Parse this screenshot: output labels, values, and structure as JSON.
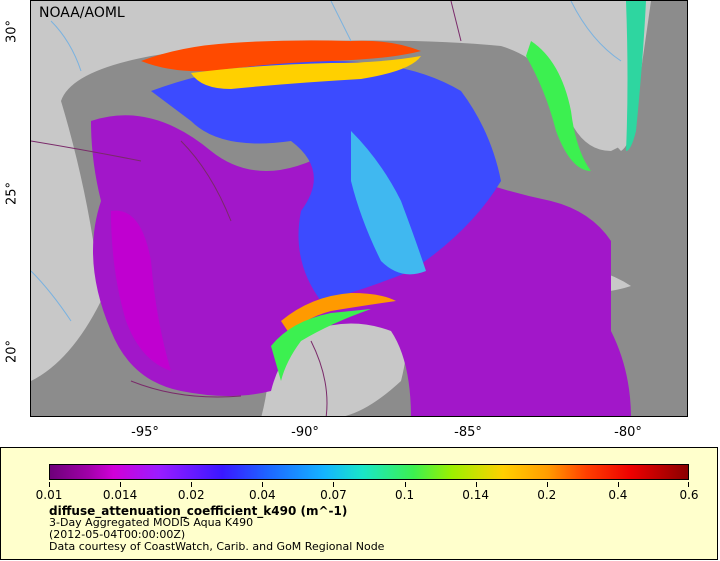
{
  "credit": "NOAA/AOML",
  "y_ticks": [
    "30°",
    "25°",
    "20°"
  ],
  "x_ticks": [
    "-95°",
    "-90°",
    "-85°",
    "-80°"
  ],
  "colorbar": {
    "ticks": [
      "0.01",
      "0.014",
      "0.02",
      "0.04",
      "0.07",
      "0.1",
      "0.14",
      "0.2",
      "0.4",
      "0.6"
    ]
  },
  "legend": {
    "variable": "diffuse_attenuation_coefficient_k490 (m^-1)",
    "product": "3-Day Aggregated MODIS Aqua K490",
    "time": "(2012-05-04T00:00:00Z)",
    "source": "Data courtesy of CoastWatch, Carib. and GoM Regional Node"
  },
  "colors": {
    "land": "#c8c8c8",
    "no_data": "#888888",
    "panel": "#ffffcc",
    "boundary": "#7a2a6a",
    "river": "#7ab2e0"
  }
}
